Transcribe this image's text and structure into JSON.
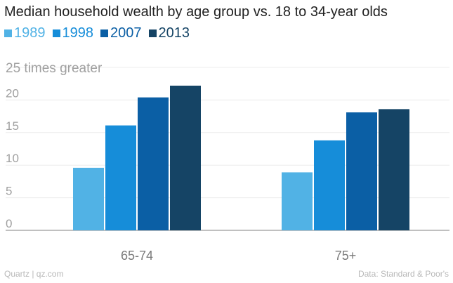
{
  "chart_data": {
    "type": "bar",
    "title": "Median household wealth by age group vs. 18 to 34-year olds",
    "ylabel": "25 times greater",
    "categories": [
      "65-74",
      "75+"
    ],
    "series": [
      {
        "name": "1989",
        "color": "#51b2e5",
        "values": [
          9.6,
          8.9
        ]
      },
      {
        "name": "1998",
        "color": "#168dd9",
        "values": [
          16.1,
          13.8
        ]
      },
      {
        "name": "2007",
        "color": "#0b5fa5",
        "values": [
          20.4,
          18.1
        ]
      },
      {
        "name": "2013",
        "color": "#154465",
        "values": [
          22.2,
          18.6
        ]
      }
    ],
    "yticks": [
      0,
      5,
      10,
      15,
      20,
      25
    ],
    "ylim": [
      0,
      25
    ],
    "grid": true,
    "legend_position": "top-left"
  },
  "footer": {
    "left": "Quartz | qz.com",
    "right": "Data: Standard & Poor's"
  }
}
